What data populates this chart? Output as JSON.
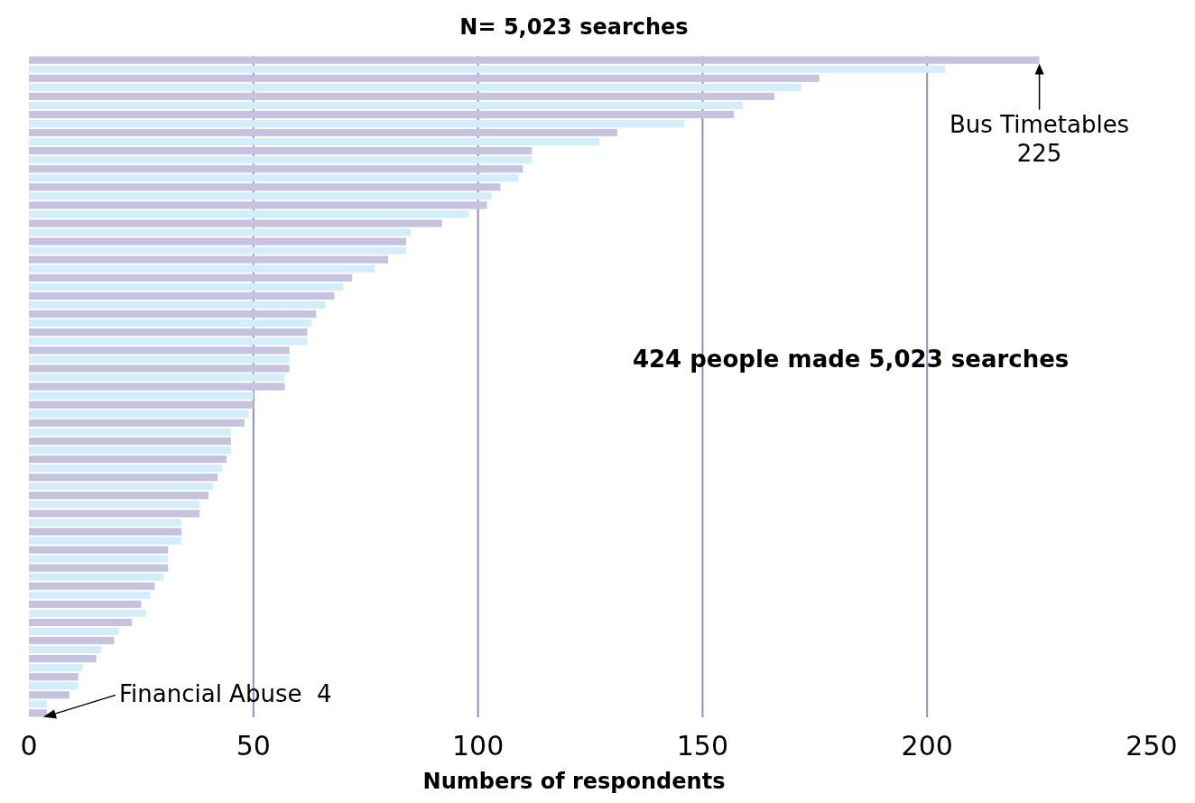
{
  "chart_data": {
    "type": "bar",
    "orientation": "horizontal",
    "title": "N= 5,023 searches",
    "xlabel": "Numbers of respondents",
    "categories": [
      null,
      null,
      null,
      null,
      null,
      null,
      null,
      null,
      null,
      null,
      null,
      null,
      null,
      null,
      null,
      null,
      null,
      null,
      null,
      null,
      null,
      null,
      null,
      null,
      null,
      null,
      null,
      null,
      null,
      null,
      null,
      null,
      null,
      null,
      null,
      null,
      null,
      null,
      null,
      null,
      null,
      null,
      null,
      null,
      null,
      null,
      null,
      null,
      null,
      null,
      null,
      null,
      null,
      null,
      null,
      null,
      null,
      null,
      null,
      null,
      null,
      null,
      null,
      null,
      null,
      null,
      null,
      null,
      null,
      null,
      null,
      null,
      null
    ],
    "values": [
      225,
      204,
      176,
      172,
      166,
      159,
      157,
      146,
      131,
      127,
      112,
      112,
      110,
      109,
      105,
      103,
      102,
      98,
      92,
      85,
      84,
      84,
      80,
      77,
      72,
      70,
      68,
      66,
      64,
      63,
      62,
      62,
      58,
      58,
      58,
      57,
      57,
      50,
      50,
      49,
      48,
      45,
      45,
      45,
      44,
      43,
      42,
      41,
      40,
      38,
      38,
      34,
      34,
      34,
      31,
      31,
      31,
      30,
      28,
      27,
      25,
      26,
      23,
      20,
      19,
      16,
      15,
      12,
      11,
      11,
      9,
      4,
      4
    ],
    "colors": [
      "#c5c3dd",
      "#d3eefa",
      "#c5c3dd",
      "#d3eefa",
      "#c5c3dd",
      "#d3eefa",
      "#c5c3dd",
      "#d3eefa",
      "#c5c3dd",
      "#d3eefa",
      "#c5c3dd",
      "#d3eefa",
      "#c5c3dd",
      "#d3eefa",
      "#c5c3dd",
      "#d3eefa",
      "#c5c3dd",
      "#d3eefa",
      "#c5c3dd",
      "#d3eefa",
      "#c5c3dd",
      "#d3eefa",
      "#c5c3dd",
      "#d3eefa",
      "#c5c3dd",
      "#d3eefa",
      "#c5c3dd",
      "#d3eefa",
      "#c5c3dd",
      "#d3eefa",
      "#c5c3dd",
      "#d3eefa",
      "#c5c3dd",
      "#d3eefa",
      "#c5c3dd",
      "#d3eefa",
      "#c5c3dd",
      "#d3eefa",
      "#c5c3dd",
      "#d3eefa",
      "#c5c3dd",
      "#d3eefa",
      "#c5c3dd",
      "#d3eefa",
      "#c5c3dd",
      "#d3eefa",
      "#c5c3dd",
      "#d3eefa",
      "#c5c3dd",
      "#d3eefa",
      "#c5c3dd",
      "#d3eefa",
      "#c5c3dd",
      "#d3eefa",
      "#c5c3dd",
      "#d3eefa",
      "#c5c3dd",
      "#d3eefa",
      "#c5c3dd",
      "#d3eefa",
      "#c5c3dd",
      "#d3eefa",
      "#c5c3dd",
      "#d3eefa",
      "#c5c3dd",
      "#d3eefa",
      "#c5c3dd",
      "#d3eefa",
      "#c5c3dd",
      "#d3eefa",
      "#c5c3dd",
      "#d3eefa",
      "#c5c3dd"
    ],
    "xlim": [
      0,
      250
    ],
    "xticks": [
      0,
      50,
      100,
      150,
      200,
      250
    ],
    "grid": "x",
    "annotations": [
      {
        "text": "Bus Timetables\n225",
        "x": 225
      },
      "Financial Abuse  4",
      "424 people made 5,023 searches"
    ]
  }
}
